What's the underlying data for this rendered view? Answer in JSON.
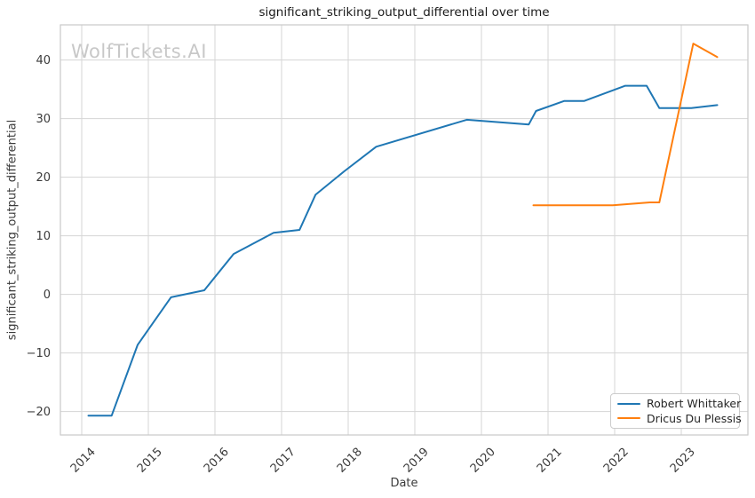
{
  "title": "significant_striking_output_differential over time",
  "watermark": "WolfTickets.AI",
  "axes": {
    "xlabel": "Date",
    "ylabel": "significant_striking_output_differential"
  },
  "legend": {
    "items": [
      {
        "label": "Robert Whittaker",
        "color": "#1f77b4"
      },
      {
        "label": "Dricus Du Plessis",
        "color": "#ff7f0e"
      }
    ]
  },
  "colors": {
    "grid": "#d5d5d5",
    "spine": "#c9c9c9",
    "tick_text": "#3b3b3b",
    "title_text": "#1a1a1a",
    "watermark": "#c8c8c8",
    "background": "#ffffff",
    "series_blue": "#1f77b4",
    "series_orange": "#ff7f0e"
  },
  "chart_data": {
    "type": "line",
    "title": "significant_striking_output_differential over time",
    "xlabel": "Date",
    "ylabel": "significant_striking_output_differential",
    "x_unit": "decimal_year",
    "xlim": [
      2013.68,
      2024.0
    ],
    "ylim": [
      -24,
      46
    ],
    "x_ticks": [
      2014,
      2015,
      2016,
      2017,
      2018,
      2019,
      2020,
      2021,
      2022,
      2023
    ],
    "x_tick_labels": [
      "2014",
      "2015",
      "2016",
      "2017",
      "2018",
      "2019",
      "2020",
      "2021",
      "2022",
      "2023"
    ],
    "y_ticks": [
      -20,
      -10,
      0,
      10,
      20,
      30,
      40
    ],
    "y_tick_labels": [
      "−20",
      "−10",
      "0",
      "10",
      "20",
      "30",
      "40"
    ],
    "grid": true,
    "legend_position": "lower right",
    "series": [
      {
        "name": "Robert Whittaker",
        "color": "#1f77b4",
        "points": [
          [
            2014.1,
            -20.7
          ],
          [
            2014.45,
            -20.7
          ],
          [
            2014.84,
            -8.6
          ],
          [
            2015.34,
            -0.5
          ],
          [
            2015.84,
            0.7
          ],
          [
            2016.28,
            6.9
          ],
          [
            2016.88,
            10.5
          ],
          [
            2017.27,
            11.0
          ],
          [
            2017.51,
            17.0
          ],
          [
            2017.94,
            21.0
          ],
          [
            2018.42,
            25.2
          ],
          [
            2019.78,
            29.8
          ],
          [
            2020.71,
            29.0
          ],
          [
            2020.82,
            31.3
          ],
          [
            2021.24,
            33.0
          ],
          [
            2021.54,
            33.0
          ],
          [
            2022.16,
            35.6
          ],
          [
            2022.48,
            35.6
          ],
          [
            2022.67,
            31.8
          ],
          [
            2023.15,
            31.8
          ],
          [
            2023.54,
            32.3
          ]
        ]
      },
      {
        "name": "Dricus Du Plessis",
        "color": "#ff7f0e",
        "points": [
          [
            2020.78,
            15.2
          ],
          [
            2021.97,
            15.2
          ],
          [
            2022.53,
            15.7
          ],
          [
            2022.67,
            15.7
          ],
          [
            2023.18,
            42.8
          ],
          [
            2023.54,
            40.5
          ]
        ]
      }
    ]
  }
}
